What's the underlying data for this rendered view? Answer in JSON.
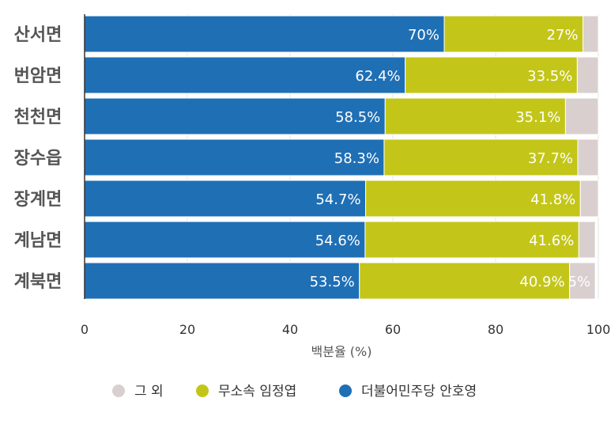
{
  "chart_data": {
    "type": "bar",
    "orientation": "horizontal",
    "stacked": true,
    "categories": [
      "산서면",
      "번암면",
      "천천면",
      "장수읍",
      "장계면",
      "계남면",
      "계북면"
    ],
    "series": [
      {
        "name": "더불어민주당 안호영",
        "color": "#1f6fb5",
        "values": [
          70,
          62.4,
          58.5,
          58.3,
          54.7,
          54.6,
          53.5
        ],
        "labels": [
          "70%",
          "62.4%",
          "58.5%",
          "58.3%",
          "54.7%",
          "54.6%",
          "53.5%"
        ]
      },
      {
        "name": "무소속 임정엽",
        "color": "#c3c619",
        "values": [
          27,
          33.5,
          35.1,
          37.7,
          41.8,
          41.6,
          40.9
        ],
        "labels": [
          "27%",
          "33.5%",
          "35.1%",
          "37.7%",
          "41.8%",
          "41.6%",
          "40.9%"
        ]
      },
      {
        "name": "그 외",
        "color": "#d9cfcf",
        "values": [
          3,
          4.1,
          6.4,
          4,
          3.5,
          3.2,
          5
        ],
        "labels": [
          "",
          "",
          "",
          "",
          "",
          "",
          "5%"
        ]
      }
    ],
    "xlim": [
      0,
      100
    ],
    "xticks": [
      0,
      20,
      40,
      60,
      80,
      100
    ],
    "xlabel": "백분율 (%)",
    "legend": {
      "placement": "bottom",
      "order": [
        "그 외",
        "무소속 임정엽",
        "더불어민주당 안호영"
      ]
    },
    "grid": true
  }
}
